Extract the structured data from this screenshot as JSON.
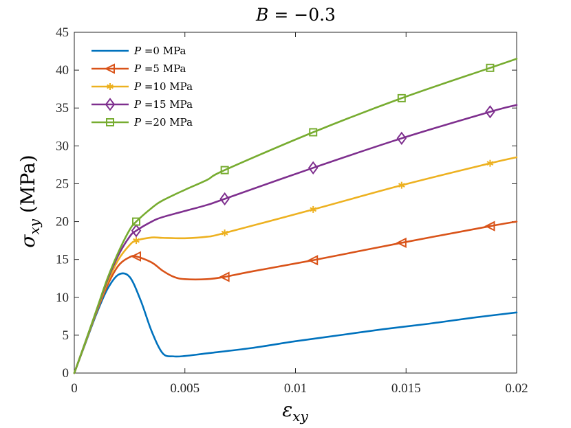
{
  "chart_data": {
    "type": "line",
    "title": "B = −0.3",
    "xlabel": "εxy",
    "ylabel": "σxy (MPa)",
    "xlim": [
      0,
      0.02
    ],
    "ylim": [
      0,
      45
    ],
    "xticks": [
      0,
      0.005,
      0.01,
      0.015,
      0.02
    ],
    "xtick_labels": [
      "0",
      "0.005",
      "0.01",
      "0.015",
      "0.02"
    ],
    "yticks": [
      0,
      5,
      10,
      15,
      20,
      25,
      30,
      35,
      40,
      45
    ],
    "ytick_labels": [
      "0",
      "5",
      "10",
      "15",
      "20",
      "25",
      "30",
      "35",
      "40",
      "45"
    ],
    "grid": false,
    "legend_position": "top-left",
    "series": [
      {
        "name": "P =0 MPa",
        "prefix": "P",
        "suffix": " =0 MPa",
        "color": "#0072BD",
        "marker": "none",
        "x": [
          0,
          0.0005,
          0.001,
          0.0015,
          0.002,
          0.0025,
          0.003,
          0.0035,
          0.004,
          0.0045,
          0.005,
          0.006,
          0.008,
          0.01,
          0.012,
          0.014,
          0.016,
          0.018,
          0.02
        ],
        "y": [
          0,
          3.9,
          7.8,
          11.1,
          13.0,
          12.7,
          9.6,
          5.5,
          2.6,
          2.2,
          2.25,
          2.6,
          3.3,
          4.2,
          5.0,
          5.8,
          6.5,
          7.3,
          8.0
        ],
        "marker_x": []
      },
      {
        "name": "P =5 MPa",
        "prefix": "P",
        "suffix": " =5 MPa",
        "color": "#D95319",
        "marker": "triangle-left",
        "x": [
          0,
          0.0005,
          0.001,
          0.0015,
          0.002,
          0.0025,
          0.0028,
          0.0035,
          0.004,
          0.0045,
          0.005,
          0.006,
          0.0068,
          0.008,
          0.0108,
          0.0148,
          0.0188,
          0.02
        ],
        "y": [
          0,
          4.0,
          8.0,
          11.6,
          14.2,
          15.3,
          15.4,
          14.6,
          13.5,
          12.7,
          12.4,
          12.4,
          12.7,
          13.4,
          14.9,
          17.2,
          19.4,
          20.0
        ],
        "marker_x": [
          0.0028,
          0.0068,
          0.0108,
          0.0148,
          0.0188
        ]
      },
      {
        "name": "P =10 MPa",
        "prefix": "P",
        "suffix": " =10 MPa",
        "color": "#EDB120",
        "marker": "asterisk",
        "x": [
          0,
          0.0005,
          0.001,
          0.0015,
          0.002,
          0.0025,
          0.0028,
          0.0035,
          0.004,
          0.005,
          0.006,
          0.0068,
          0.0108,
          0.0148,
          0.0188,
          0.02
        ],
        "y": [
          0,
          4.0,
          8.1,
          12.0,
          15.0,
          16.9,
          17.5,
          17.9,
          17.85,
          17.8,
          18.0,
          18.5,
          21.6,
          24.8,
          27.7,
          28.5
        ],
        "marker_x": [
          0.0028,
          0.0068,
          0.0108,
          0.0148,
          0.0188
        ]
      },
      {
        "name": "P =15 MPa",
        "prefix": "P",
        "suffix": " =15 MPa",
        "color": "#7E2F8E",
        "marker": "diamond",
        "x": [
          0,
          0.0005,
          0.001,
          0.0015,
          0.002,
          0.0025,
          0.0028,
          0.0035,
          0.004,
          0.005,
          0.006,
          0.0068,
          0.0108,
          0.0148,
          0.0188,
          0.02
        ],
        "y": [
          0,
          4.1,
          8.2,
          12.3,
          15.6,
          18.0,
          18.8,
          20.0,
          20.6,
          21.4,
          22.2,
          23.0,
          27.1,
          31.0,
          34.5,
          35.4
        ],
        "marker_x": [
          0.0028,
          0.0068,
          0.0108,
          0.0148,
          0.0188
        ]
      },
      {
        "name": "P =20 MPa",
        "prefix": "P",
        "suffix": " =20 MPa",
        "color": "#77AC30",
        "marker": "square",
        "x": [
          0,
          0.0005,
          0.001,
          0.0015,
          0.002,
          0.0025,
          0.0028,
          0.0035,
          0.004,
          0.005,
          0.006,
          0.0068,
          0.0108,
          0.0148,
          0.0188,
          0.02
        ],
        "y": [
          0,
          4.1,
          8.3,
          12.5,
          16.0,
          18.9,
          20.0,
          21.8,
          22.8,
          24.2,
          25.5,
          26.8,
          31.8,
          36.3,
          40.3,
          41.5
        ],
        "marker_x": [
          0.0028,
          0.0068,
          0.0108,
          0.0148,
          0.0188
        ]
      }
    ]
  }
}
